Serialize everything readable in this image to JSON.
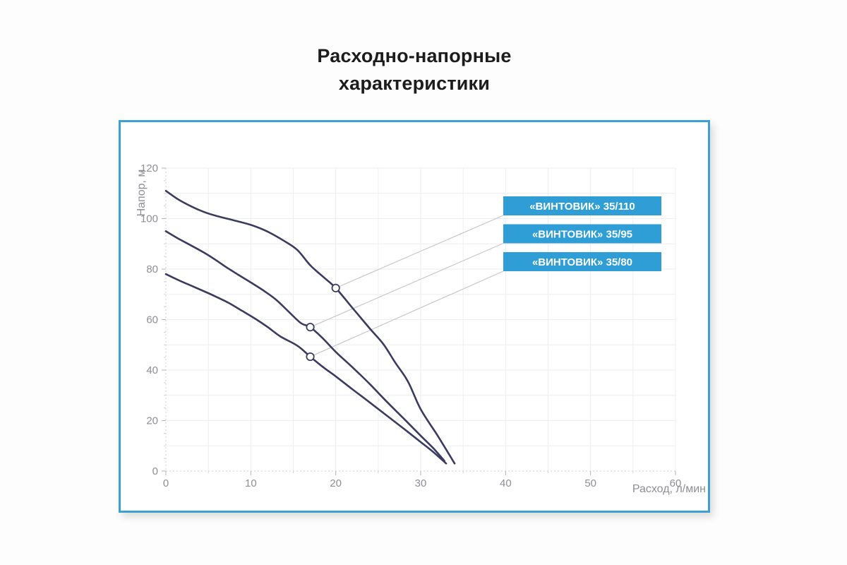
{
  "title": {
    "line1": "Расходно-напорные",
    "line2": "характеристики"
  },
  "chart_data": {
    "type": "line",
    "title": "Расходно-напорные характеристики",
    "xlabel": "Расход, л/мин",
    "ylabel": "Напор, м",
    "xlim": [
      0,
      60
    ],
    "ylim": [
      0,
      120
    ],
    "x_ticks": [
      0,
      10,
      20,
      30,
      40,
      50,
      60
    ],
    "y_ticks": [
      0,
      20,
      40,
      60,
      80,
      100,
      120
    ],
    "grid": {
      "on": true,
      "x_step": 5,
      "y_step": 10
    },
    "legend_position": "inside-right",
    "series": [
      {
        "name": "«ВИНТОВИК» 35/110",
        "marker_point": [
          20,
          72.5
        ],
        "points": [
          [
            0,
            111
          ],
          [
            1.5,
            107.5
          ],
          [
            3,
            104.8
          ],
          [
            4.5,
            102.6
          ],
          [
            6,
            101
          ],
          [
            8,
            99.3
          ],
          [
            10,
            97.5
          ],
          [
            12,
            94.8
          ],
          [
            14,
            91
          ],
          [
            15.5,
            87.5
          ],
          [
            17,
            81.5
          ],
          [
            18.5,
            77
          ],
          [
            20,
            72.5
          ],
          [
            22,
            64.5
          ],
          [
            24,
            56.5
          ],
          [
            25.6,
            50.3
          ],
          [
            27,
            43
          ],
          [
            28.5,
            35.5
          ],
          [
            30,
            24.5
          ],
          [
            32,
            14
          ],
          [
            34,
            3
          ]
        ]
      },
      {
        "name": "«ВИНТОВИК» 35/95",
        "marker_point": [
          17,
          57
        ],
        "points": [
          [
            0,
            95
          ],
          [
            1.5,
            92
          ],
          [
            3,
            89.3
          ],
          [
            4.5,
            86.5
          ],
          [
            6,
            83.3
          ],
          [
            7,
            81
          ],
          [
            8.5,
            77.8
          ],
          [
            10,
            74.7
          ],
          [
            11.5,
            71.5
          ],
          [
            13,
            67.8
          ],
          [
            14.5,
            63
          ],
          [
            15.9,
            58.6
          ],
          [
            17,
            57
          ],
          [
            18.5,
            52.5
          ],
          [
            20,
            47.2
          ],
          [
            22,
            41
          ],
          [
            24,
            34.5
          ],
          [
            26,
            27.5
          ],
          [
            28,
            20.8
          ],
          [
            30,
            14
          ],
          [
            31.5,
            9
          ],
          [
            32.8,
            4
          ]
        ]
      },
      {
        "name": "«ВИНТОВИК» 35/80",
        "marker_point": [
          17,
          45.3
        ],
        "points": [
          [
            0,
            78
          ],
          [
            1.5,
            75.6
          ],
          [
            3,
            73.4
          ],
          [
            4.5,
            71.2
          ],
          [
            6,
            68.9
          ],
          [
            7.5,
            66.4
          ],
          [
            9,
            63.4
          ],
          [
            10.5,
            60.4
          ],
          [
            12,
            57
          ],
          [
            13.5,
            53.3
          ],
          [
            15.5,
            49.6
          ],
          [
            17,
            45.3
          ],
          [
            18.5,
            41.2
          ],
          [
            20,
            37.5
          ],
          [
            22,
            32.3
          ],
          [
            24,
            27.2
          ],
          [
            26,
            22
          ],
          [
            28,
            16.8
          ],
          [
            30,
            11.5
          ],
          [
            31.5,
            7.5
          ],
          [
            33,
            3
          ]
        ]
      }
    ]
  },
  "colors": {
    "curve": "#3b3b60",
    "marker_fill": "#ffffff",
    "legend_fill": "#2f9ed6",
    "legend_text": "#ffffff",
    "card_border": "#3da0d3",
    "grid": "#edeef2",
    "axis": "#cfcfd6",
    "tick": "#b4b4ba",
    "tick_minor": "#d4d4da",
    "tick_label": "#8e8e94",
    "connector": "#c8c8cc",
    "title_text": "#1c1c1c"
  }
}
